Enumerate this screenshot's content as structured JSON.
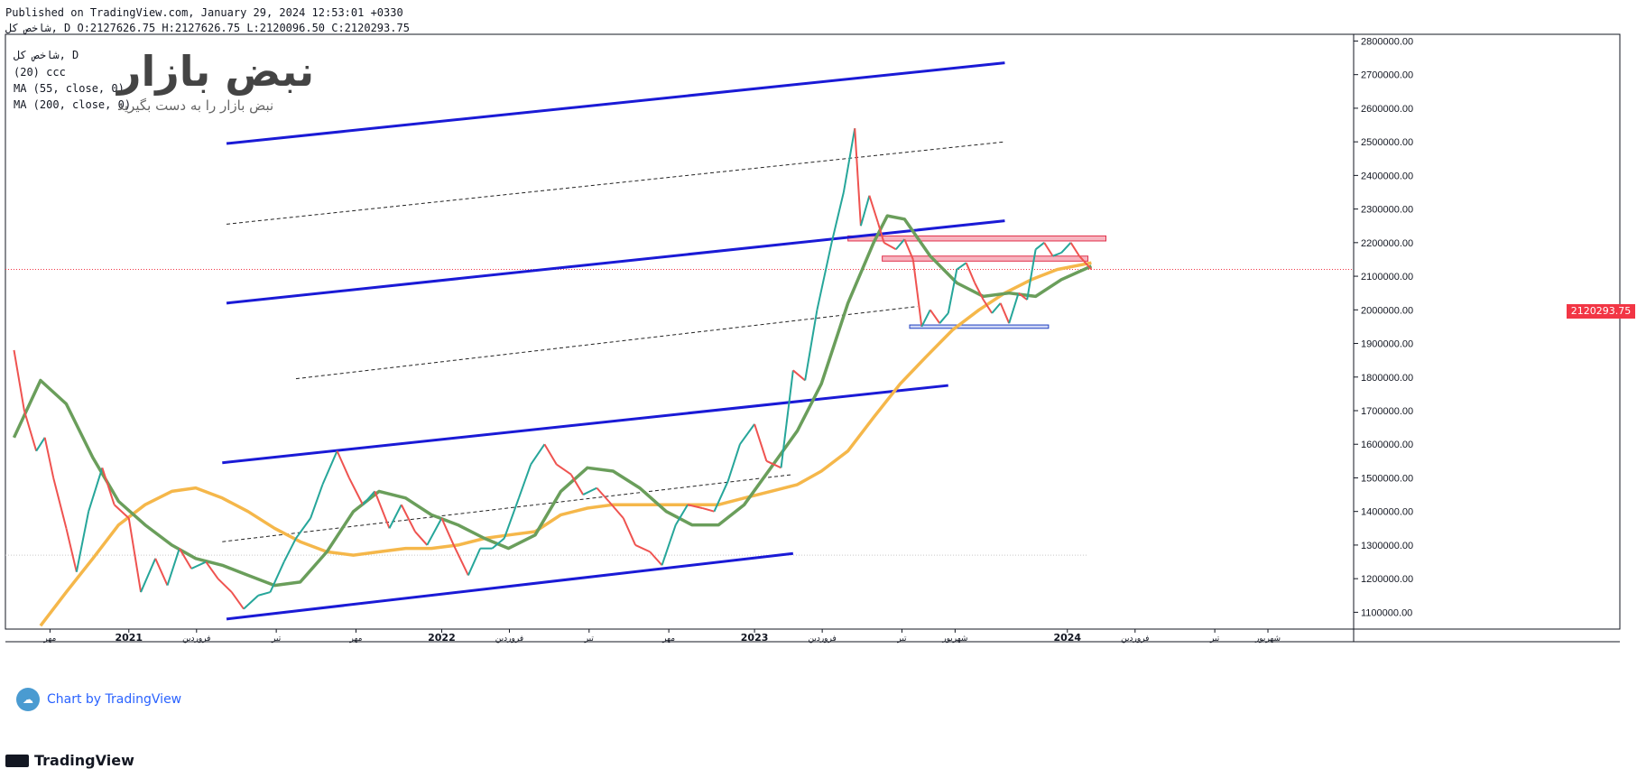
{
  "header": {
    "published": "Published on TradingView.com, January 29, 2024 12:53:01 +0330",
    "ohlc": "شاخص کل, D O:2127626.75 H:2127626.75 L:2120096.50 C:2120293.75"
  },
  "legend": {
    "line1": "شاخص کل, D",
    "line2": "(20) ccc",
    "line3": "MA (55, close, 0)",
    "line4": "MA (200, close, 0)"
  },
  "watermark": {
    "brand": "نبض بازار",
    "slogan": "نبض بازار را به دست بگیرید",
    "chart_by": "Chart by TradingView",
    "footer": "TradingView"
  },
  "colors": {
    "ma55": "#6a9e5b",
    "ma200": "#f5b74a",
    "channel": "#1a1ad6",
    "up": "#26a69a",
    "down": "#ef5350",
    "current": "#f23645"
  },
  "chart_data": {
    "type": "candlestick",
    "instrument": "شاخص کل",
    "interval": "D",
    "last_price_label": "2120293.75",
    "last_price": 2120293.75,
    "ylim": [
      1050000,
      2820000
    ],
    "y_ticks": [
      "2800000.00",
      "2700000.00",
      "2600000.00",
      "2500000.00",
      "2400000.00",
      "2300000.00",
      "2200000.00",
      "2100000.00",
      "2000000.00",
      "1900000.00",
      "1800000.00",
      "1700000.00",
      "1600000.00",
      "1500000.00",
      "1400000.00",
      "1300000.00",
      "1200000.00",
      "1100000.00"
    ],
    "x_ticks": [
      "مهر",
      "2021",
      "فروردین",
      "تیر",
      "مهر",
      "2022",
      "فروردین",
      "تیر",
      "مهر",
      "2023",
      "فروردین",
      "تیر",
      "شهریور",
      "2024",
      "فروردین",
      "تیر",
      "شهریور"
    ],
    "price_series": [
      [
        "2020-08-20",
        1880000
      ],
      [
        "2020-09-01",
        1700000
      ],
      [
        "2020-09-15",
        1580000
      ],
      [
        "2020-09-25",
        1620000
      ],
      [
        "2020-10-05",
        1500000
      ],
      [
        "2020-10-20",
        1350000
      ],
      [
        "2020-11-01",
        1220000
      ],
      [
        "2020-11-15",
        1400000
      ],
      [
        "2020-12-01",
        1530000
      ],
      [
        "2020-12-15",
        1420000
      ],
      [
        "2021-01-01",
        1380000
      ],
      [
        "2021-01-15",
        1160000
      ],
      [
        "2021-02-01",
        1260000
      ],
      [
        "2021-02-15",
        1180000
      ],
      [
        "2021-03-01",
        1290000
      ],
      [
        "2021-03-15",
        1230000
      ],
      [
        "2021-04-01",
        1250000
      ],
      [
        "2021-04-15",
        1200000
      ],
      [
        "2021-05-01",
        1160000
      ],
      [
        "2021-05-15",
        1110000
      ],
      [
        "2021-06-01",
        1150000
      ],
      [
        "2021-06-15",
        1160000
      ],
      [
        "2021-07-01",
        1250000
      ],
      [
        "2021-07-15",
        1320000
      ],
      [
        "2021-08-01",
        1380000
      ],
      [
        "2021-08-15",
        1480000
      ],
      [
        "2021-09-01",
        1580000
      ],
      [
        "2021-09-15",
        1500000
      ],
      [
        "2021-10-01",
        1420000
      ],
      [
        "2021-10-15",
        1460000
      ],
      [
        "2021-11-01",
        1350000
      ],
      [
        "2021-11-15",
        1420000
      ],
      [
        "2021-12-01",
        1340000
      ],
      [
        "2021-12-15",
        1300000
      ],
      [
        "2022-01-01",
        1380000
      ],
      [
        "2022-01-15",
        1300000
      ],
      [
        "2022-02-01",
        1210000
      ],
      [
        "2022-02-15",
        1290000
      ],
      [
        "2022-03-01",
        1290000
      ],
      [
        "2022-03-15",
        1320000
      ],
      [
        "2022-04-01",
        1440000
      ],
      [
        "2022-04-15",
        1540000
      ],
      [
        "2022-05-01",
        1600000
      ],
      [
        "2022-05-15",
        1540000
      ],
      [
        "2022-06-01",
        1510000
      ],
      [
        "2022-06-15",
        1450000
      ],
      [
        "2022-07-01",
        1470000
      ],
      [
        "2022-07-15",
        1430000
      ],
      [
        "2022-08-01",
        1380000
      ],
      [
        "2022-08-15",
        1300000
      ],
      [
        "2022-09-01",
        1280000
      ],
      [
        "2022-09-15",
        1240000
      ],
      [
        "2022-10-01",
        1360000
      ],
      [
        "2022-10-15",
        1420000
      ],
      [
        "2022-11-01",
        1410000
      ],
      [
        "2022-11-15",
        1400000
      ],
      [
        "2022-12-01",
        1490000
      ],
      [
        "2022-12-15",
        1600000
      ],
      [
        "2023-01-01",
        1660000
      ],
      [
        "2023-01-15",
        1550000
      ],
      [
        "2023-02-01",
        1530000
      ],
      [
        "2023-02-15",
        1820000
      ],
      [
        "2023-03-01",
        1790000
      ],
      [
        "2023-03-15",
        2000000
      ],
      [
        "2023-04-01",
        2200000
      ],
      [
        "2023-04-15",
        2350000
      ],
      [
        "2023-04-28",
        2540000
      ],
      [
        "2023-05-05",
        2250000
      ],
      [
        "2023-05-15",
        2340000
      ],
      [
        "2023-05-25",
        2260000
      ],
      [
        "2023-06-01",
        2200000
      ],
      [
        "2023-06-15",
        2180000
      ],
      [
        "2023-06-25",
        2210000
      ],
      [
        "2023-07-05",
        2150000
      ],
      [
        "2023-07-15",
        1950000
      ],
      [
        "2023-07-25",
        2000000
      ],
      [
        "2023-08-05",
        1960000
      ],
      [
        "2023-08-15",
        1990000
      ],
      [
        "2023-08-25",
        2120000
      ],
      [
        "2023-09-05",
        2140000
      ],
      [
        "2023-09-15",
        2080000
      ],
      [
        "2023-09-25",
        2030000
      ],
      [
        "2023-10-05",
        1990000
      ],
      [
        "2023-10-15",
        2020000
      ],
      [
        "2023-10-25",
        1960000
      ],
      [
        "2023-11-05",
        2050000
      ],
      [
        "2023-11-15",
        2030000
      ],
      [
        "2023-11-25",
        2180000
      ],
      [
        "2023-12-05",
        2200000
      ],
      [
        "2023-12-15",
        2160000
      ],
      [
        "2023-12-25",
        2170000
      ],
      [
        "2024-01-05",
        2200000
      ],
      [
        "2024-01-15",
        2160000
      ],
      [
        "2024-01-29",
        2120293.75
      ]
    ],
    "ma55_series": [
      [
        "2020-08-20",
        1620000
      ],
      [
        "2020-09-20",
        1790000
      ],
      [
        "2020-10-20",
        1720000
      ],
      [
        "2020-11-20",
        1560000
      ],
      [
        "2020-12-20",
        1430000
      ],
      [
        "2021-01-20",
        1360000
      ],
      [
        "2021-02-20",
        1300000
      ],
      [
        "2021-03-20",
        1260000
      ],
      [
        "2021-04-20",
        1240000
      ],
      [
        "2021-05-20",
        1210000
      ],
      [
        "2021-06-20",
        1180000
      ],
      [
        "2021-07-20",
        1190000
      ],
      [
        "2021-08-20",
        1280000
      ],
      [
        "2021-09-20",
        1400000
      ],
      [
        "2021-10-20",
        1460000
      ],
      [
        "2021-11-20",
        1440000
      ],
      [
        "2021-12-20",
        1390000
      ],
      [
        "2022-01-20",
        1360000
      ],
      [
        "2022-02-20",
        1320000
      ],
      [
        "2022-03-20",
        1290000
      ],
      [
        "2022-04-20",
        1330000
      ],
      [
        "2022-05-20",
        1460000
      ],
      [
        "2022-06-20",
        1530000
      ],
      [
        "2022-07-20",
        1520000
      ],
      [
        "2022-08-20",
        1470000
      ],
      [
        "2022-09-20",
        1400000
      ],
      [
        "2022-10-20",
        1360000
      ],
      [
        "2022-11-20",
        1360000
      ],
      [
        "2022-12-20",
        1420000
      ],
      [
        "2023-01-20",
        1530000
      ],
      [
        "2023-02-20",
        1640000
      ],
      [
        "2023-03-20",
        1780000
      ],
      [
        "2023-04-20",
        2020000
      ],
      [
        "2023-05-20",
        2200000
      ],
      [
        "2023-06-05",
        2280000
      ],
      [
        "2023-06-25",
        2270000
      ],
      [
        "2023-07-25",
        2160000
      ],
      [
        "2023-08-25",
        2080000
      ],
      [
        "2023-09-25",
        2040000
      ],
      [
        "2023-10-25",
        2050000
      ],
      [
        "2023-11-25",
        2040000
      ],
      [
        "2023-12-25",
        2090000
      ],
      [
        "2024-01-29",
        2130000
      ]
    ],
    "ma200_series": [
      [
        "2020-09-20",
        1060000
      ],
      [
        "2020-10-20",
        1160000
      ],
      [
        "2020-11-20",
        1260000
      ],
      [
        "2020-12-20",
        1360000
      ],
      [
        "2021-01-20",
        1420000
      ],
      [
        "2021-02-20",
        1460000
      ],
      [
        "2021-03-20",
        1470000
      ],
      [
        "2021-04-20",
        1440000
      ],
      [
        "2021-05-20",
        1400000
      ],
      [
        "2021-06-20",
        1350000
      ],
      [
        "2021-07-20",
        1310000
      ],
      [
        "2021-08-20",
        1280000
      ],
      [
        "2021-09-20",
        1270000
      ],
      [
        "2021-10-20",
        1280000
      ],
      [
        "2021-11-20",
        1290000
      ],
      [
        "2021-12-20",
        1290000
      ],
      [
        "2022-01-20",
        1300000
      ],
      [
        "2022-02-20",
        1320000
      ],
      [
        "2022-03-20",
        1330000
      ],
      [
        "2022-04-20",
        1340000
      ],
      [
        "2022-05-20",
        1390000
      ],
      [
        "2022-06-20",
        1410000
      ],
      [
        "2022-07-20",
        1420000
      ],
      [
        "2022-08-20",
        1420000
      ],
      [
        "2022-09-20",
        1420000
      ],
      [
        "2022-10-20",
        1420000
      ],
      [
        "2022-11-20",
        1420000
      ],
      [
        "2022-12-20",
        1440000
      ],
      [
        "2023-01-20",
        1460000
      ],
      [
        "2023-02-20",
        1480000
      ],
      [
        "2023-03-20",
        1520000
      ],
      [
        "2023-04-20",
        1580000
      ],
      [
        "2023-05-20",
        1680000
      ],
      [
        "2023-06-20",
        1780000
      ],
      [
        "2023-07-20",
        1860000
      ],
      [
        "2023-08-20",
        1940000
      ],
      [
        "2023-09-20",
        2000000
      ],
      [
        "2023-10-20",
        2050000
      ],
      [
        "2023-11-20",
        2090000
      ],
      [
        "2023-12-20",
        2120000
      ],
      [
        "2024-01-29",
        2140000
      ]
    ],
    "drawings": {
      "channel_lines": [
        [
          [
            "2021-04-25",
            2495000
          ],
          [
            "2023-10-20",
            2735000
          ]
        ],
        [
          [
            "2021-04-25",
            2020000
          ],
          [
            "2023-10-20",
            2265000
          ]
        ],
        [
          [
            "2021-04-20",
            1545000
          ],
          [
            "2023-08-15",
            1775000
          ]
        ],
        [
          [
            "2021-04-25",
            1080000
          ],
          [
            "2023-02-15",
            1275000
          ]
        ]
      ],
      "dashed_lines": [
        [
          [
            "2021-04-25",
            2255000
          ],
          [
            "2023-10-20",
            2500000
          ]
        ],
        [
          [
            "2021-07-15",
            1795000
          ],
          [
            "2023-07-10",
            2010000
          ]
        ],
        [
          [
            "2021-04-20",
            1310000
          ],
          [
            "2023-02-15",
            1510000
          ]
        ]
      ],
      "zones": [
        {
          "from": "2023-04-20",
          "to": "2024-02-15",
          "low": 2205000,
          "high": 2220000
        },
        {
          "from": "2023-05-30",
          "to": "2024-01-25",
          "low": 2145000,
          "high": 2160000
        },
        {
          "from": "2023-07-01",
          "to": "2023-12-10",
          "low": 1945000,
          "high": 1955000
        }
      ],
      "dotted_levels": [
        1270000
      ]
    },
    "x_range": [
      "2020-08-10",
      "2024-11-30"
    ]
  }
}
